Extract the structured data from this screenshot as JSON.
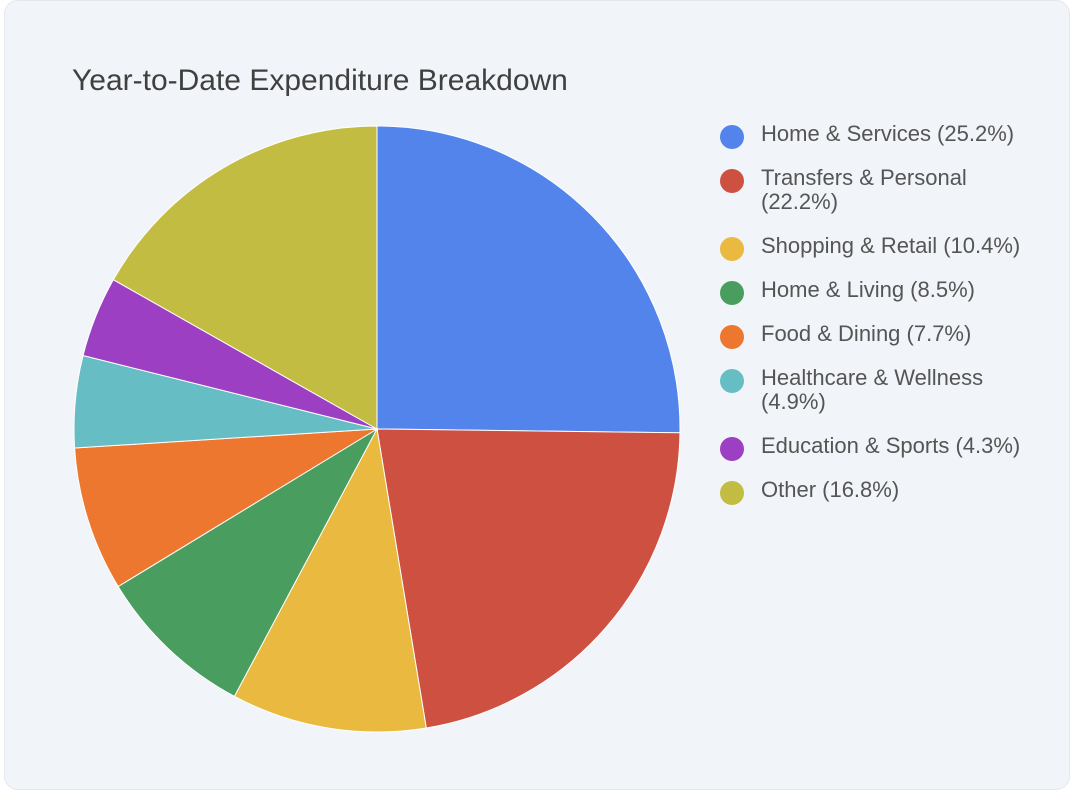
{
  "chart_data": {
    "type": "pie",
    "title": "Year-to-Date Expenditure Breakdown",
    "legend_position": "right",
    "slices": [
      {
        "label": "Home & Services",
        "value": 25.2,
        "color": "#5384ec"
      },
      {
        "label": "Transfers & Personal",
        "value": 22.2,
        "color": "#cd5040"
      },
      {
        "label": "Shopping & Retail",
        "value": 10.4,
        "color": "#e9b940"
      },
      {
        "label": "Home & Living",
        "value": 8.5,
        "color": "#489d5f"
      },
      {
        "label": "Food & Dining",
        "value": 7.7,
        "color": "#ee7730"
      },
      {
        "label": "Healthcare & Wellness",
        "value": 4.9,
        "color": "#67bdc4"
      },
      {
        "label": "Education & Sports",
        "value": 4.3,
        "color": "#9d3fc2"
      },
      {
        "label": "Other",
        "value": 16.8,
        "color": "#c2bd42"
      }
    ],
    "legend_labels": [
      "Home & Services (25.2%)",
      "Transfers & Personal (22.2%)",
      "Shopping & Retail (10.4%)",
      "Home & Living (8.5%)",
      "Food & Dining (7.7%)",
      "Healthcare & Wellness (4.9%)",
      "Education & Sports (4.3%)",
      "Other (16.8%)"
    ]
  }
}
